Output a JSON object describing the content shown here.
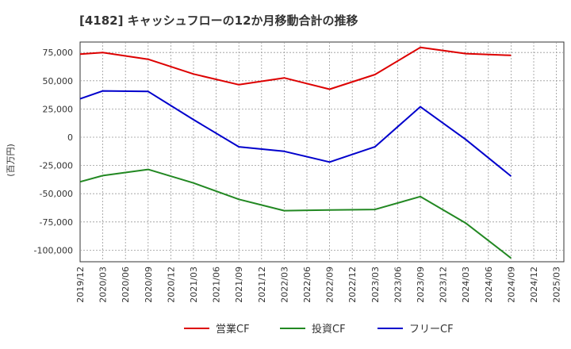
{
  "chart_data": {
    "type": "line",
    "title": "[4182]  キャッシュフローの12か月移動合計の推移",
    "ylabel": "(百万円)",
    "xlabel": "",
    "categories": [
      "2019/12",
      "2020/03",
      "2020/06",
      "2020/09",
      "2020/12",
      "2021/03",
      "2021/06",
      "2021/09",
      "2021/12",
      "2022/03",
      "2022/06",
      "2022/09",
      "2022/12",
      "2023/03",
      "2023/06",
      "2023/09",
      "2023/12",
      "2024/03",
      "2024/06",
      "2024/09",
      "2024/12",
      "2025/03"
    ],
    "ylim": [
      -110000,
      85000
    ],
    "yticks": [
      75000,
      50000,
      25000,
      0,
      -25000,
      -50000,
      -75000,
      -100000
    ],
    "ytick_labels": [
      "75,000",
      "50,000",
      "25,000",
      "0",
      "-25,000",
      "-50,000",
      "-75,000",
      "-100,000"
    ],
    "grid": true,
    "legend_position": "bottom",
    "series": [
      {
        "name": "営業CF",
        "color": "#dd0000",
        "x": [
          "2019/12",
          "2020/03",
          "2020/09",
          "2021/03",
          "2021/09",
          "2022/03",
          "2022/09",
          "2023/03",
          "2023/09",
          "2024/03",
          "2024/09"
        ],
        "values": [
          73500,
          75000,
          69000,
          56000,
          46500,
          52500,
          42500,
          55500,
          79500,
          74000,
          72500
        ]
      },
      {
        "name": "投資CF",
        "color": "#228822",
        "x": [
          "2019/12",
          "2020/03",
          "2020/09",
          "2021/03",
          "2021/09",
          "2022/03",
          "2022/09",
          "2023/03",
          "2023/09",
          "2024/03",
          "2024/09"
        ],
        "values": [
          -39500,
          -34000,
          -28500,
          -40500,
          -55000,
          -65000,
          -64500,
          -64000,
          -52500,
          -76000,
          -107000
        ]
      },
      {
        "name": "フリーCF",
        "color": "#0000cc",
        "x": [
          "2019/12",
          "2020/03",
          "2020/09",
          "2021/03",
          "2021/09",
          "2022/03",
          "2022/09",
          "2023/03",
          "2023/09",
          "2024/03",
          "2024/09"
        ],
        "values": [
          34000,
          41000,
          40500,
          15500,
          -8500,
          -12500,
          -22000,
          -8500,
          27000,
          -2000,
          -34500
        ]
      }
    ]
  }
}
